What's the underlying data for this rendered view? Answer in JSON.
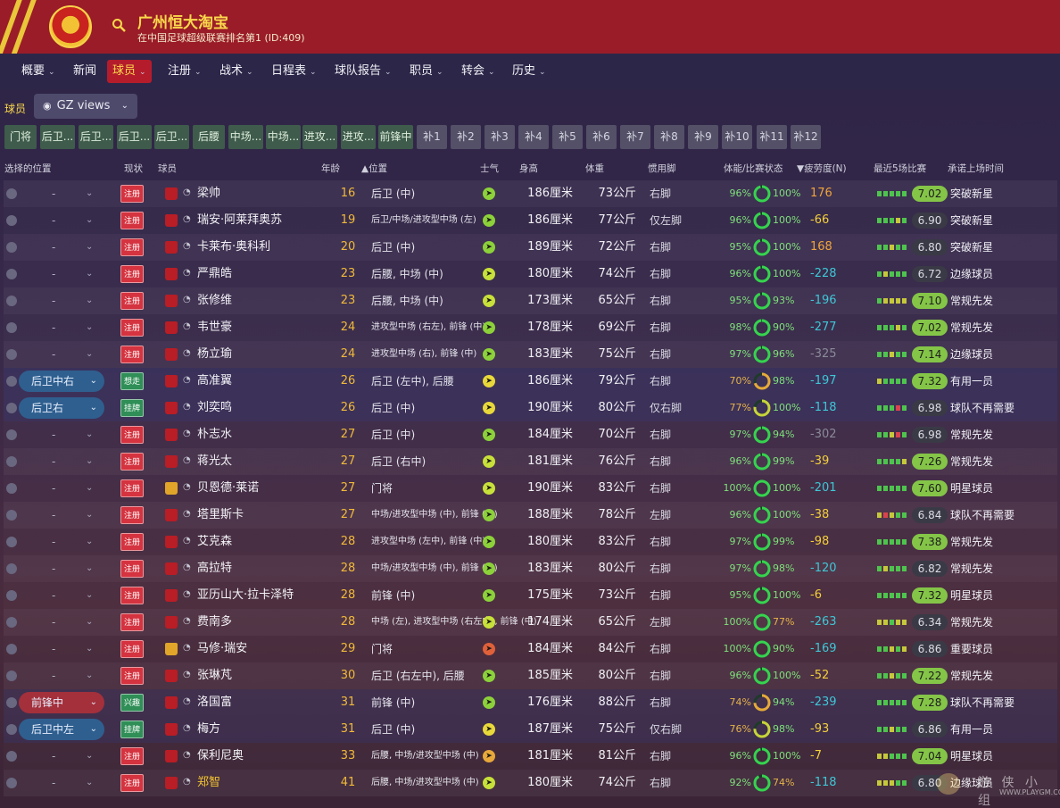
{
  "header": {
    "club_name": "广州恒大淘宝",
    "club_subtitle": "在中国足球超级联赛排名第1 (ID:409)",
    "accent_color": "#9a1c28",
    "stripe_color": "#e9c63a"
  },
  "nav": [
    {
      "label": "概要",
      "has_menu": true,
      "active": false
    },
    {
      "label": "新闻",
      "has_menu": false,
      "active": false
    },
    {
      "label": "球员",
      "has_menu": true,
      "active": true
    },
    {
      "label": "注册",
      "has_menu": true,
      "active": false
    },
    {
      "label": "战术",
      "has_menu": true,
      "active": false
    },
    {
      "label": "日程表",
      "has_menu": true,
      "active": false
    },
    {
      "label": "球队报告",
      "has_menu": true,
      "active": false
    },
    {
      "label": "职员",
      "has_menu": true,
      "active": false
    },
    {
      "label": "转会",
      "has_menu": true,
      "active": false
    },
    {
      "label": "历史",
      "has_menu": true,
      "active": false
    }
  ],
  "subnav": {
    "label": "球员",
    "views_button": "GZ views"
  },
  "position_tabs": [
    {
      "label": "门将",
      "style": "green"
    },
    {
      "label": "后卫...",
      "style": "green"
    },
    {
      "label": "后卫...",
      "style": "green"
    },
    {
      "label": "后卫...",
      "style": "green"
    },
    {
      "label": "后卫...",
      "style": "green"
    },
    {
      "label": "后腰",
      "style": "green"
    },
    {
      "label": "中场...",
      "style": "green"
    },
    {
      "label": "中场...",
      "style": "green"
    },
    {
      "label": "进攻...",
      "style": "green"
    },
    {
      "label": "进攻...",
      "style": "green"
    },
    {
      "label": "前锋中",
      "style": "green"
    },
    {
      "label": "补1",
      "style": "grey"
    },
    {
      "label": "补2",
      "style": "grey"
    },
    {
      "label": "补3",
      "style": "grey"
    },
    {
      "label": "补4",
      "style": "grey"
    },
    {
      "label": "补5",
      "style": "grey"
    },
    {
      "label": "补6",
      "style": "grey"
    },
    {
      "label": "补7",
      "style": "grey"
    },
    {
      "label": "补8",
      "style": "grey"
    },
    {
      "label": "补9",
      "style": "grey"
    },
    {
      "label": "补10",
      "style": "grey"
    },
    {
      "label": "补11",
      "style": "grey"
    },
    {
      "label": "补12",
      "style": "grey"
    }
  ],
  "columns": {
    "select_pos": "选择的位置",
    "status": "现状",
    "player": "球员",
    "age": "年龄",
    "position": "▲位置",
    "morale": "士气",
    "height": "身高",
    "weight": "体重",
    "foot": "惯用脚",
    "condition": "体能/比赛状态",
    "fatigue": "▼疲劳度(N)",
    "form": "最近5场比赛",
    "role": "承诺上场时间"
  },
  "players": [
    {
      "sel": "-",
      "status": "注册",
      "status_color": "red",
      "shirt": "red",
      "name": "梁帅",
      "age": "16",
      "position": "后卫 (中)",
      "morale_color": "#8cd13a",
      "height": "186厘米",
      "weight": "73公斤",
      "foot": "右脚",
      "condition": "96%",
      "sharpness": "100%",
      "fatigue": "176",
      "fatigue_color": "#f0a43a",
      "form": [
        "g",
        "g",
        "g",
        "g",
        "g"
      ],
      "rating": "7.02",
      "rating_style": "green",
      "role": "突破新星"
    },
    {
      "sel": "-",
      "status": "注册",
      "status_color": "red",
      "shirt": "red",
      "name": "瑞安·阿莱拜奥苏",
      "age": "19",
      "position": "后卫/中场/进攻型中场 (左)",
      "pos_small": true,
      "morale_color": "#8cd13a",
      "height": "186厘米",
      "weight": "77公斤",
      "foot": "仅左脚",
      "condition": "96%",
      "sharpness": "100%",
      "fatigue": "-66",
      "fatigue_color": "#f3cf3a",
      "form": [
        "g",
        "g",
        "g",
        "y",
        "g"
      ],
      "rating": "6.90",
      "rating_style": "dark",
      "role": "突破新星"
    },
    {
      "sel": "-",
      "status": "注册",
      "status_color": "red",
      "shirt": "red",
      "name": "卡莱布·奥科利",
      "age": "20",
      "position": "后卫 (中)",
      "morale_color": "#8cd13a",
      "height": "189厘米",
      "weight": "72公斤",
      "foot": "右脚",
      "condition": "95%",
      "sharpness": "100%",
      "fatigue": "168",
      "fatigue_color": "#f0a43a",
      "form": [
        "g",
        "g",
        "y",
        "g",
        "g"
      ],
      "rating": "6.80",
      "rating_style": "dark",
      "role": "突破新星"
    },
    {
      "sel": "-",
      "status": "注册",
      "status_color": "red",
      "shirt": "red",
      "name": "严鼎皓",
      "age": "23",
      "position": "后腰, 中场 (中)",
      "morale_color": "#c8e03a",
      "height": "180厘米",
      "weight": "74公斤",
      "foot": "右脚",
      "condition": "96%",
      "sharpness": "100%",
      "fatigue": "-228",
      "fatigue_color": "#3ec7d6",
      "form": [
        "g",
        "y",
        "g",
        "g",
        "g"
      ],
      "rating": "6.72",
      "rating_style": "dark",
      "role": "边缘球员"
    },
    {
      "sel": "-",
      "status": "注册",
      "status_color": "red",
      "shirt": "red",
      "name": "张修维",
      "age": "23",
      "position": "后腰, 中场 (中)",
      "morale_color": "#c8e03a",
      "height": "173厘米",
      "weight": "65公斤",
      "foot": "右脚",
      "condition": "95%",
      "sharpness": "93%",
      "fatigue": "-196",
      "fatigue_color": "#3ec7d6",
      "form": [
        "g",
        "y",
        "y",
        "y",
        "y"
      ],
      "rating": "7.10",
      "rating_style": "green",
      "role": "常规先发"
    },
    {
      "sel": "-",
      "status": "注册",
      "status_color": "red",
      "shirt": "red",
      "name": "韦世豪",
      "age": "24",
      "position": "进攻型中场 (右左), 前锋 (中)",
      "pos_small": true,
      "morale_color": "#8cd13a",
      "height": "178厘米",
      "weight": "69公斤",
      "foot": "右脚",
      "condition": "98%",
      "sharpness": "90%",
      "fatigue": "-277",
      "fatigue_color": "#3ec7d6",
      "form": [
        "g",
        "g",
        "g",
        "y",
        "g"
      ],
      "rating": "7.02",
      "rating_style": "green",
      "role": "常规先发"
    },
    {
      "sel": "-",
      "status": "注册",
      "status_color": "red",
      "shirt": "red",
      "name": "杨立瑜",
      "age": "24",
      "position": "进攻型中场 (右), 前锋 (中)",
      "pos_small": true,
      "morale_color": "#8cd13a",
      "height": "183厘米",
      "weight": "75公斤",
      "foot": "右脚",
      "condition": "97%",
      "sharpness": "96%",
      "fatigue": "-325",
      "fatigue_color": "#8a8a98",
      "form": [
        "g",
        "g",
        "y",
        "g",
        "g"
      ],
      "rating": "7.14",
      "rating_style": "green",
      "role": "边缘球员"
    },
    {
      "sel": "后卫中右",
      "sel_style": "blue",
      "status": "想走",
      "status_color": "green",
      "shirt": "red",
      "name": "高准翼",
      "age": "26",
      "position": "后卫 (左中), 后腰",
      "morale_color": "#e8d83a",
      "height": "186厘米",
      "weight": "79公斤",
      "foot": "右脚",
      "condition": "70%",
      "sharpness": "98%",
      "fatigue": "-197",
      "fatigue_color": "#3ec7d6",
      "form": [
        "y",
        "g",
        "g",
        "g",
        "g"
      ],
      "rating": "7.32",
      "rating_style": "green",
      "role": "有用一员"
    },
    {
      "sel": "后卫右",
      "sel_style": "blue",
      "status": "挂牌",
      "status_color": "green",
      "shirt": "red",
      "name": "刘奕鸣",
      "age": "26",
      "position": "后卫 (中)",
      "morale_color": "#e8d83a",
      "height": "190厘米",
      "weight": "80公斤",
      "foot": "仅右脚",
      "condition": "77%",
      "sharpness": "100%",
      "fatigue": "-118",
      "fatigue_color": "#3ec7d6",
      "form": [
        "g",
        "g",
        "g",
        "r",
        "g"
      ],
      "rating": "6.98",
      "rating_style": "dark",
      "role": "球队不再需要"
    },
    {
      "sel": "-",
      "status": "注册",
      "status_color": "red",
      "shirt": "red",
      "name": "朴志水",
      "age": "27",
      "position": "后卫 (中)",
      "morale_color": "#8cd13a",
      "height": "184厘米",
      "weight": "70公斤",
      "foot": "右脚",
      "condition": "97%",
      "sharpness": "94%",
      "fatigue": "-302",
      "fatigue_color": "#8a8a98",
      "form": [
        "g",
        "g",
        "y",
        "r",
        "g"
      ],
      "rating": "6.98",
      "rating_style": "dark",
      "role": "常规先发"
    },
    {
      "sel": "-",
      "status": "注册",
      "status_color": "red",
      "shirt": "red",
      "name": "蒋光太",
      "age": "27",
      "position": "后卫 (右中)",
      "morale_color": "#c8e03a",
      "height": "181厘米",
      "weight": "76公斤",
      "foot": "右脚",
      "condition": "96%",
      "sharpness": "99%",
      "fatigue": "-39",
      "fatigue_color": "#f3cf3a",
      "form": [
        "g",
        "g",
        "g",
        "g",
        "y"
      ],
      "rating": "7.26",
      "rating_style": "green",
      "role": "常规先发"
    },
    {
      "sel": "-",
      "status": "注册",
      "status_color": "red",
      "shirt": "yellow",
      "name": "贝恩德·莱诺",
      "age": "27",
      "position": "门将",
      "morale_color": "#c8e03a",
      "height": "190厘米",
      "weight": "83公斤",
      "foot": "右脚",
      "condition": "100%",
      "sharpness": "100%",
      "fatigue": "-201",
      "fatigue_color": "#3ec7d6",
      "form": [
        "g",
        "g",
        "g",
        "g",
        "g"
      ],
      "rating": "7.60",
      "rating_style": "green",
      "role": "明星球员"
    },
    {
      "sel": "-",
      "status": "注册",
      "status_color": "red",
      "shirt": "red",
      "name": "塔里斯卡",
      "age": "27",
      "position": "中场/进攻型中场 (中), 前锋 (中)",
      "pos_small": true,
      "morale_color": "#8cd13a",
      "height": "188厘米",
      "weight": "78公斤",
      "foot": "左脚",
      "condition": "96%",
      "sharpness": "100%",
      "fatigue": "-38",
      "fatigue_color": "#f3cf3a",
      "form": [
        "y",
        "r",
        "y",
        "g",
        "g"
      ],
      "rating": "6.84",
      "rating_style": "dark",
      "role": "球队不再需要"
    },
    {
      "sel": "-",
      "status": "注册",
      "status_color": "red",
      "shirt": "red",
      "name": "艾克森",
      "age": "28",
      "position": "进攻型中场 (左中), 前锋 (中)",
      "pos_small": true,
      "morale_color": "#8cd13a",
      "height": "180厘米",
      "weight": "83公斤",
      "foot": "右脚",
      "condition": "97%",
      "sharpness": "99%",
      "fatigue": "-98",
      "fatigue_color": "#f3cf3a",
      "form": [
        "g",
        "g",
        "g",
        "g",
        "g"
      ],
      "rating": "7.38",
      "rating_style": "green",
      "role": "常规先发"
    },
    {
      "sel": "-",
      "status": "注册",
      "status_color": "red",
      "shirt": "red",
      "name": "高拉特",
      "age": "28",
      "position": "中场/进攻型中场 (中), 前锋 (中)",
      "pos_small": true,
      "morale_color": "#8cd13a",
      "height": "183厘米",
      "weight": "80公斤",
      "foot": "右脚",
      "condition": "97%",
      "sharpness": "98%",
      "fatigue": "-120",
      "fatigue_color": "#3ec7d6",
      "form": [
        "g",
        "y",
        "g",
        "g",
        "g"
      ],
      "rating": "6.82",
      "rating_style": "dark",
      "role": "常规先发"
    },
    {
      "sel": "-",
      "status": "注册",
      "status_color": "red",
      "shirt": "red",
      "name": "亚历山大·拉卡泽特",
      "age": "28",
      "position": "前锋 (中)",
      "morale_color": "#8cd13a",
      "height": "175厘米",
      "weight": "73公斤",
      "foot": "右脚",
      "condition": "95%",
      "sharpness": "100%",
      "fatigue": "-6",
      "fatigue_color": "#f3cf3a",
      "form": [
        "g",
        "g",
        "g",
        "g",
        "g"
      ],
      "rating": "7.32",
      "rating_style": "green",
      "role": "明星球员"
    },
    {
      "sel": "-",
      "status": "注册",
      "status_color": "red",
      "shirt": "red",
      "name": "费南多",
      "age": "28",
      "position": "中场 (左), 进攻型中场 (右左中), 前锋 (中)",
      "pos_small": true,
      "morale_color": "#c8e03a",
      "height": "174厘米",
      "weight": "65公斤",
      "foot": "左脚",
      "condition": "100%",
      "sharpness": "77%",
      "fatigue": "-263",
      "fatigue_color": "#3ec7d6",
      "form": [
        "y",
        "y",
        "g",
        "y",
        "y"
      ],
      "rating": "6.34",
      "rating_style": "dark",
      "role": "常规先发"
    },
    {
      "sel": "-",
      "status": "注册",
      "status_color": "red",
      "shirt": "yellow",
      "name": "马修·瑞安",
      "age": "29",
      "position": "门将",
      "morale_color": "#e0603a",
      "height": "184厘米",
      "weight": "84公斤",
      "foot": "右脚",
      "condition": "100%",
      "sharpness": "90%",
      "fatigue": "-169",
      "fatigue_color": "#3ec7d6",
      "form": [
        "g",
        "g",
        "y",
        "g",
        "y"
      ],
      "rating": "6.86",
      "rating_style": "dark",
      "role": "重要球员"
    },
    {
      "sel": "-",
      "status": "注册",
      "status_color": "red",
      "shirt": "red",
      "name": "张琳芃",
      "age": "30",
      "position": "后卫 (右左中), 后腰",
      "morale_color": "#8cd13a",
      "height": "185厘米",
      "weight": "80公斤",
      "foot": "右脚",
      "condition": "96%",
      "sharpness": "100%",
      "fatigue": "-52",
      "fatigue_color": "#f3cf3a",
      "form": [
        "g",
        "g",
        "y",
        "g",
        "g"
      ],
      "rating": "7.22",
      "rating_style": "green",
      "role": "常规先发"
    },
    {
      "sel": "前锋中",
      "sel_style": "red",
      "status": "兴趣",
      "status_color": "green",
      "shirt": "red",
      "name": "洛国富",
      "age": "31",
      "position": "前锋 (中)",
      "morale_color": "#8cd13a",
      "height": "176厘米",
      "weight": "88公斤",
      "foot": "右脚",
      "condition": "74%",
      "sharpness": "94%",
      "fatigue": "-239",
      "fatigue_color": "#3ec7d6",
      "form": [
        "g",
        "g",
        "g",
        "g",
        "g"
      ],
      "rating": "7.28",
      "rating_style": "green",
      "role": "球队不再需要"
    },
    {
      "sel": "后卫中左",
      "sel_style": "blue",
      "status": "挂牌",
      "status_color": "green",
      "shirt": "red",
      "name": "梅方",
      "age": "31",
      "position": "后卫 (中)",
      "morale_color": "#e8d83a",
      "height": "187厘米",
      "weight": "75公斤",
      "foot": "仅右脚",
      "condition": "76%",
      "sharpness": "98%",
      "fatigue": "-93",
      "fatigue_color": "#f3cf3a",
      "form": [
        "g",
        "g",
        "y",
        "g",
        "g"
      ],
      "rating": "6.86",
      "rating_style": "dark",
      "role": "有用一员"
    },
    {
      "sel": "-",
      "status": "注册",
      "status_color": "red",
      "shirt": "red",
      "name": "保利尼奥",
      "age": "33",
      "position": "后腰, 中场/进攻型中场 (中)",
      "pos_small": true,
      "morale_color": "#e8a83a",
      "height": "181厘米",
      "weight": "81公斤",
      "foot": "右脚",
      "condition": "96%",
      "sharpness": "100%",
      "fatigue": "-7",
      "fatigue_color": "#f3cf3a",
      "form": [
        "y",
        "y",
        "g",
        "g",
        "g"
      ],
      "rating": "7.04",
      "rating_style": "green",
      "role": "明星球员"
    },
    {
      "sel": "-",
      "status": "注册",
      "status_color": "red",
      "shirt": "red",
      "name": "郑智",
      "name_gold": true,
      "age": "41",
      "position": "后腰, 中场/进攻型中场 (中)",
      "pos_small": true,
      "morale_color": "#c8e03a",
      "height": "180厘米",
      "weight": "74公斤",
      "foot": "右脚",
      "condition": "92%",
      "sharpness": "74%",
      "fatigue": "-118",
      "fatigue_color": "#3ec7d6",
      "form": [
        "y",
        "y",
        "y",
        "g",
        "g"
      ],
      "rating": "6.80",
      "rating_style": "dark",
      "role": "边缘球员"
    }
  ],
  "watermark": {
    "text": "游 侠 小 组",
    "url": "WWW.PLAYGM.CC"
  }
}
